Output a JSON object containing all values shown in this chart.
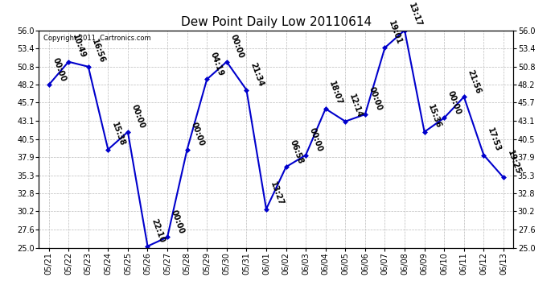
{
  "title": "Dew Point Daily Low 20110614",
  "copyright": "Copyright 2011  Cartronics.com",
  "line_color": "#0000CC",
  "marker_color": "#0000CC",
  "background_color": "#ffffff",
  "grid_color": "#bbbbbb",
  "ylim": [
    25.0,
    56.0
  ],
  "yticks": [
    25.0,
    27.6,
    30.2,
    32.8,
    35.3,
    37.9,
    40.5,
    43.1,
    45.7,
    48.2,
    50.8,
    53.4,
    56.0
  ],
  "points": [
    {
      "date": "05/21",
      "value": 48.2,
      "label": "00:00"
    },
    {
      "date": "05/22",
      "value": 51.5,
      "label": "10:49"
    },
    {
      "date": "05/23",
      "value": 50.8,
      "label": "16:56"
    },
    {
      "date": "05/24",
      "value": 39.0,
      "label": "15:38"
    },
    {
      "date": "05/25",
      "value": 41.5,
      "label": "00:00"
    },
    {
      "date": "05/26",
      "value": 25.2,
      "label": "22:10"
    },
    {
      "date": "05/27",
      "value": 26.5,
      "label": "00:00"
    },
    {
      "date": "05/28",
      "value": 39.0,
      "label": "00:00"
    },
    {
      "date": "05/29",
      "value": 49.0,
      "label": "04:19"
    },
    {
      "date": "05/30",
      "value": 51.5,
      "label": "00:00"
    },
    {
      "date": "05/31",
      "value": 47.5,
      "label": "21:34"
    },
    {
      "date": "06/01",
      "value": 30.5,
      "label": "13:27"
    },
    {
      "date": "06/02",
      "value": 36.5,
      "label": "06:58"
    },
    {
      "date": "06/03",
      "value": 38.2,
      "label": "00:00"
    },
    {
      "date": "06/04",
      "value": 44.8,
      "label": "18:07"
    },
    {
      "date": "06/05",
      "value": 43.0,
      "label": "12:14"
    },
    {
      "date": "06/06",
      "value": 44.0,
      "label": "00:00"
    },
    {
      "date": "06/07",
      "value": 53.5,
      "label": "19:01"
    },
    {
      "date": "06/08",
      "value": 56.0,
      "label": "13:17"
    },
    {
      "date": "06/09",
      "value": 41.5,
      "label": "15:36"
    },
    {
      "date": "06/10",
      "value": 43.5,
      "label": "00:00"
    },
    {
      "date": "06/11",
      "value": 46.5,
      "label": "21:56"
    },
    {
      "date": "06/12",
      "value": 38.2,
      "label": "17:53"
    },
    {
      "date": "06/13",
      "value": 35.0,
      "label": "19:25"
    }
  ],
  "label_rotation": -70,
  "label_fontsize": 7.0,
  "xlabel_fontsize": 7.0,
  "ylabel_fontsize": 7.0,
  "title_fontsize": 11
}
